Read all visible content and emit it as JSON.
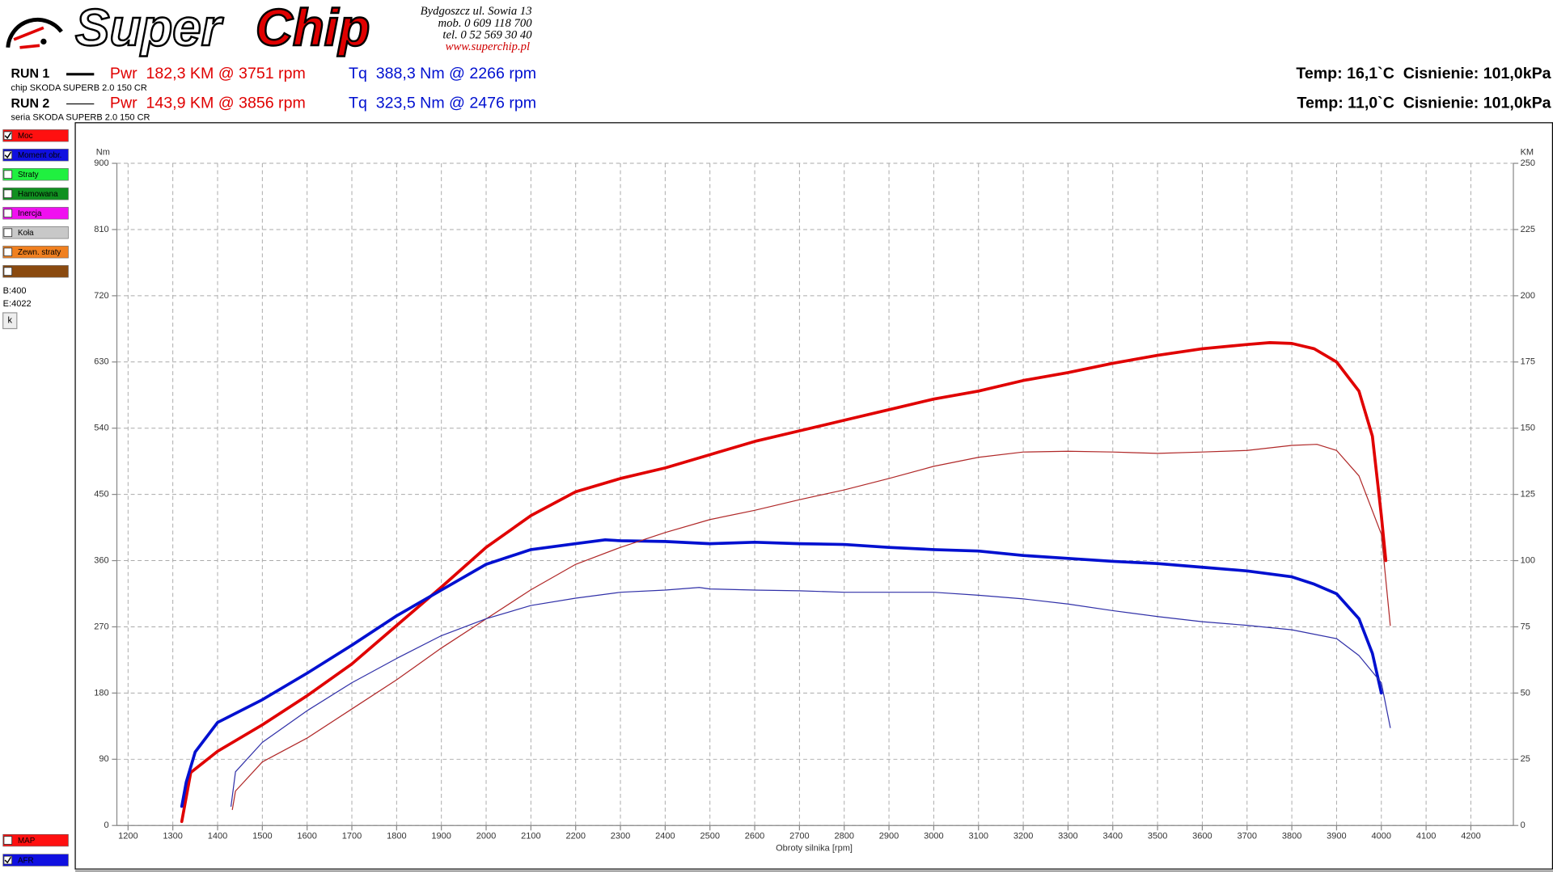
{
  "header": {
    "logo": [
      "Super",
      "Chip"
    ],
    "contact": [
      "Bydgoszcz ul. Sowia 13",
      "mob. 0 609 118 700",
      "tel. 0 52 569 30 40",
      "www.superchip.pl"
    ],
    "runs": [
      {
        "label": "RUN 1",
        "car": "chip SKODA SUPERB 2.0 150 CR",
        "pwr": "Pwr  182,3 KM @ 3751 rpm",
        "tq": "Tq  388,3 Nm @ 2266 rpm",
        "env": "Temp: 16,1`C  Cisnienie: 101,0kPa"
      },
      {
        "label": "RUN 2",
        "car": "seria SKODA SUPERB 2.0 150 CR",
        "pwr": "Pwr  143,9 KM @ 3856 rpm",
        "tq": "Tq  323,5 Nm @ 2476 rpm",
        "env": "Temp: 11,0`C  Cisnienie: 101,0kPa"
      }
    ]
  },
  "sidebar": {
    "items": [
      {
        "label": "Moc",
        "checked": true,
        "color": "#ff1010"
      },
      {
        "label": "Moment obr.",
        "checked": true,
        "color": "#1010e0"
      },
      {
        "label": "Straty",
        "checked": false,
        "color": "#20f040"
      },
      {
        "label": "Hamowana",
        "checked": false,
        "color": "#109020"
      },
      {
        "label": "Inercja",
        "checked": false,
        "color": "#f010f0"
      },
      {
        "label": "Koła",
        "checked": false,
        "color": "#c8c8c8"
      },
      {
        "label": "Zewn. straty",
        "checked": false,
        "color": "#f08020"
      },
      {
        "checked": false,
        "color": "#8a4a10"
      }
    ],
    "begin": "B:400",
    "end": "E:4022",
    "button": "k",
    "bottom": [
      {
        "label": "MAP",
        "checked": false,
        "color": "#ff1010"
      },
      {
        "label": "AFR",
        "checked": true,
        "color": "#1010e0"
      }
    ]
  },
  "chart_data": {
    "type": "line",
    "xlabel": "Obroty silnika [rpm]",
    "ylabel": "Nm",
    "y2label": "KM",
    "xlim": [
      1175,
      4295
    ],
    "ylim": [
      0,
      900
    ],
    "y2lim": [
      0,
      250
    ],
    "xticks": [
      1200,
      1300,
      1400,
      1500,
      1600,
      1700,
      1800,
      1900,
      2000,
      2100,
      2200,
      2300,
      2400,
      2500,
      2600,
      2700,
      2800,
      2900,
      3000,
      3100,
      3200,
      3300,
      3400,
      3500,
      3600,
      3700,
      3800,
      3900,
      4000,
      4100,
      4200
    ],
    "yticks": [
      0,
      90,
      180,
      270,
      360,
      450,
      540,
      630,
      720,
      810,
      900
    ],
    "y2ticks": [
      0,
      25,
      50,
      75,
      100,
      125,
      150,
      175,
      200,
      225,
      250
    ],
    "grid": true,
    "series": [
      {
        "color": "#e00000",
        "width": 3,
        "axis": "y2",
        "x": [
          1320,
          1340,
          1400,
          1500,
          1600,
          1700,
          1800,
          1900,
          2000,
          2100,
          2200,
          2300,
          2400,
          2500,
          2600,
          2700,
          2800,
          2900,
          3000,
          3100,
          3200,
          3300,
          3400,
          3500,
          3600,
          3700,
          3751,
          3800,
          3850,
          3900,
          3950,
          3980,
          4000,
          4010
        ],
        "values": [
          1.5,
          20,
          28,
          38,
          49,
          61,
          75.5,
          90,
          105,
          117,
          126,
          131,
          135,
          140,
          145,
          149,
          153,
          157,
          161,
          164,
          168,
          171,
          174.5,
          177.5,
          180,
          181.6,
          182.3,
          182,
          180,
          175,
          164,
          147,
          117,
          100
        ]
      },
      {
        "color": "#0010d0",
        "width": 3,
        "x": [
          1320,
          1330,
          1350,
          1400,
          1500,
          1600,
          1700,
          1800,
          1900,
          2000,
          2100,
          2200,
          2266,
          2300,
          2400,
          2500,
          2600,
          2700,
          2800,
          2900,
          3000,
          3100,
          3200,
          3300,
          3400,
          3500,
          3600,
          3700,
          3800,
          3850,
          3900,
          3950,
          3980,
          4000
        ],
        "values": [
          26,
          59,
          100,
          140,
          171,
          207,
          245,
          285,
          320,
          355,
          375,
          383,
          388.3,
          387,
          386,
          383,
          385,
          383,
          382,
          378,
          375,
          373,
          367,
          363,
          359,
          356,
          351,
          346,
          338,
          328,
          315,
          281,
          234,
          180
        ]
      },
      {
        "color": "#b02828",
        "width": 1,
        "axis": "y2",
        "x": [
          1433,
          1440,
          1500,
          1600,
          1700,
          1800,
          1900,
          2000,
          2100,
          2200,
          2300,
          2400,
          2500,
          2600,
          2700,
          2800,
          2900,
          3000,
          3100,
          3200,
          3300,
          3400,
          3500,
          3600,
          3700,
          3800,
          3856,
          3900,
          3950,
          4000,
          4020
        ],
        "values": [
          6,
          13,
          24,
          33,
          44,
          55,
          67,
          78,
          89,
          98.6,
          105,
          110.6,
          115.5,
          119,
          123,
          126.7,
          131,
          135.6,
          139,
          141,
          141.3,
          141,
          140.5,
          141,
          141.6,
          143.5,
          143.9,
          141.6,
          132,
          110,
          75.5
        ]
      },
      {
        "color": "#3030a8",
        "width": 1,
        "x": [
          1430,
          1440,
          1500,
          1600,
          1700,
          1800,
          1900,
          2000,
          2100,
          2200,
          2300,
          2400,
          2476,
          2500,
          2600,
          2700,
          2800,
          2900,
          3000,
          3100,
          3200,
          3300,
          3400,
          3500,
          3600,
          3700,
          3800,
          3900,
          3950,
          4000,
          4020
        ],
        "values": [
          26,
          73,
          113,
          156,
          194,
          227,
          258,
          281,
          299,
          309,
          317,
          320,
          323.5,
          321.5,
          320,
          319,
          317,
          317,
          317,
          313,
          308,
          301,
          292,
          284,
          277,
          272,
          266,
          254,
          231,
          194,
          133
        ]
      }
    ]
  }
}
